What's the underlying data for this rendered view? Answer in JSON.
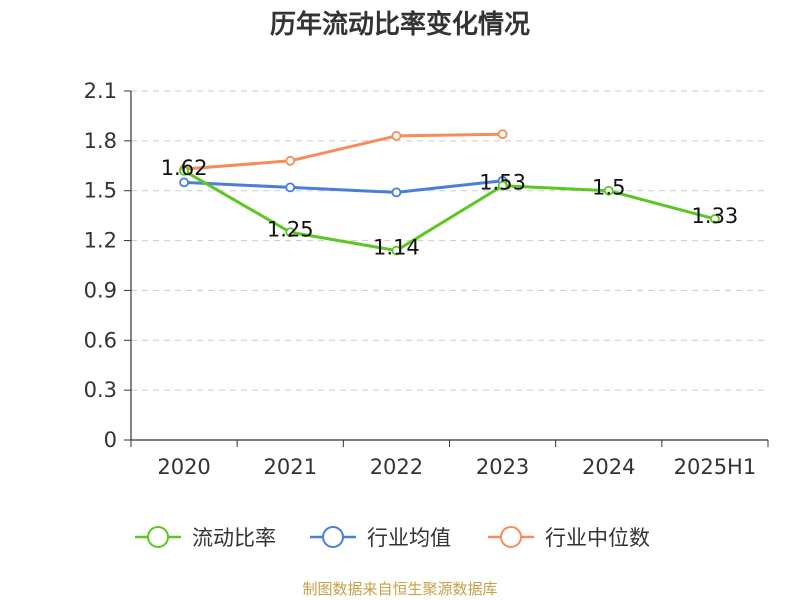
{
  "title": "历年流动比率变化情况",
  "source": "制图数据来自恒生聚源数据库",
  "chart_data": {
    "type": "line",
    "title": "历年流动比率变化情况",
    "categories": [
      "2020",
      "2021",
      "2022",
      "2023",
      "2024",
      "2025H1"
    ],
    "ylim": [
      0,
      2.1
    ],
    "yticks": [
      0,
      0.3,
      0.6,
      0.9,
      1.2,
      1.5,
      1.8,
      2.1
    ],
    "ytick_labels": [
      "0",
      "0.3",
      "0.6",
      "0.9",
      "1.2",
      "1.5",
      "1.8",
      "2.1"
    ],
    "grid": true,
    "legend_position": "bottom",
    "series": [
      {
        "name": "流动比率",
        "color": "#5cc623",
        "values": [
          1.62,
          1.25,
          1.14,
          1.53,
          1.5,
          1.33
        ],
        "labels": [
          "1.62",
          "1.25",
          "1.14",
          "1.53",
          "1.5",
          "1.33"
        ]
      },
      {
        "name": "行业均值",
        "color": "#4a7ed8",
        "values": [
          1.55,
          1.52,
          1.49,
          1.56,
          null,
          null
        ]
      },
      {
        "name": "行业中位数",
        "color": "#f58c5a",
        "values": [
          1.63,
          1.68,
          1.83,
          1.84,
          null,
          null
        ]
      }
    ]
  }
}
